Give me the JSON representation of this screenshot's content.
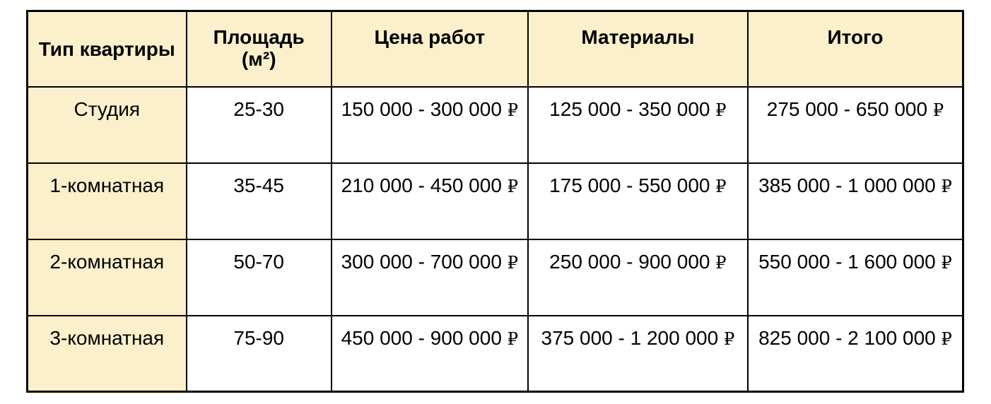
{
  "page": {
    "background_color": "#ffffff"
  },
  "table": {
    "style": {
      "header_background": "#fbf0cb",
      "first_column_background": "#fbf0cb",
      "border_color": "#000000",
      "text_color": "#000000"
    },
    "currency_symbol": "₽",
    "headers": {
      "apartment_type": "Тип квартиры",
      "area": "Площадь\n(м²)",
      "work_price": "Цена работ",
      "materials": "Материалы",
      "total": "Итого"
    },
    "rows": [
      {
        "apartment_type": "Студия",
        "area": "25-30",
        "work_price": "150 000 - 300 000",
        "materials": "125 000 - 350 000",
        "total": "275 000 - 650 000"
      },
      {
        "apartment_type": "1-комнатная",
        "area": "35-45",
        "work_price": "210 000 - 450 000",
        "materials": "175 000 - 550 000",
        "total": "385 000 - 1 000 000"
      },
      {
        "apartment_type": "2-комнатная",
        "area": "50-70",
        "work_price": "300 000 - 700 000",
        "materials": "250 000 - 900 000",
        "total": "550 000 - 1 600 000"
      },
      {
        "apartment_type": "3-комнатная",
        "area": "75-90",
        "work_price": "450 000 - 900 000",
        "materials": "375 000 - 1 200 000",
        "total": "825 000 - 2 100 000"
      }
    ]
  }
}
